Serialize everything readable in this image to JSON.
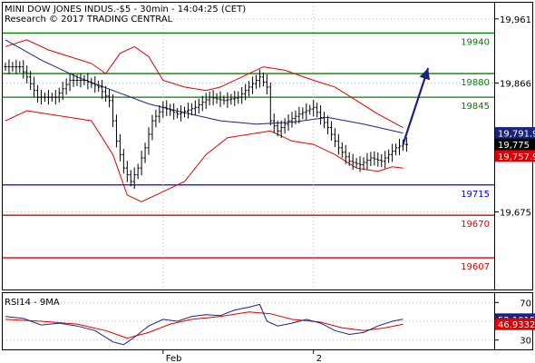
{
  "chart_data": {
    "type": "line",
    "instrument": "MINI DOW JONES INDUS.-$5 - 30min - 14:04:25 (CET)",
    "credit": "Research © 2017 TRADING CENTRAL",
    "price_axis": {
      "ylim": [
        19560,
        19985
      ],
      "ticks": [
        19961,
        19866,
        19675
      ]
    },
    "x_labels": [
      {
        "label": "Feb",
        "index": 44
      },
      {
        "label": "2",
        "index": 86
      }
    ],
    "candle_count": 113,
    "levels": [
      {
        "value": 19940,
        "label": "19940",
        "color": "#008000"
      },
      {
        "value": 19880,
        "label": "19880",
        "color": "#008000"
      },
      {
        "value": 19845,
        "label": "19845",
        "color": "#008000"
      },
      {
        "value": 19715,
        "label": "19715",
        "color": "#0000ff"
      },
      {
        "value": 19670,
        "label": "19670",
        "color": "#e00000"
      },
      {
        "value": 19607,
        "label": "19607",
        "color": "#e00000"
      }
    ],
    "price_series": [
      {
        "i": 0,
        "v": 19890
      },
      {
        "i": 4,
        "v": 19890
      },
      {
        "i": 6,
        "v": 19875
      },
      {
        "i": 9,
        "v": 19845
      },
      {
        "i": 14,
        "v": 19845
      },
      {
        "i": 18,
        "v": 19870
      },
      {
        "i": 22,
        "v": 19870
      },
      {
        "i": 26,
        "v": 19860
      },
      {
        "i": 29,
        "v": 19840
      },
      {
        "i": 31,
        "v": 19780
      },
      {
        "i": 33,
        "v": 19740
      },
      {
        "i": 35,
        "v": 19720
      },
      {
        "i": 37,
        "v": 19740
      },
      {
        "i": 39,
        "v": 19770
      },
      {
        "i": 41,
        "v": 19810
      },
      {
        "i": 44,
        "v": 19830
      },
      {
        "i": 48,
        "v": 19820
      },
      {
        "i": 53,
        "v": 19830
      },
      {
        "i": 57,
        "v": 19845
      },
      {
        "i": 61,
        "v": 19840
      },
      {
        "i": 65,
        "v": 19845
      },
      {
        "i": 68,
        "v": 19860
      },
      {
        "i": 71,
        "v": 19875
      },
      {
        "i": 73,
        "v": 19860
      },
      {
        "i": 74,
        "v": 19810
      },
      {
        "i": 76,
        "v": 19795
      },
      {
        "i": 79,
        "v": 19810
      },
      {
        "i": 82,
        "v": 19820
      },
      {
        "i": 86,
        "v": 19830
      },
      {
        "i": 90,
        "v": 19800
      },
      {
        "i": 93,
        "v": 19770
      },
      {
        "i": 96,
        "v": 19750
      },
      {
        "i": 99,
        "v": 19745
      },
      {
        "i": 102,
        "v": 19755
      },
      {
        "i": 105,
        "v": 19750
      },
      {
        "i": 107,
        "v": 19760
      },
      {
        "i": 109,
        "v": 19770
      },
      {
        "i": 111,
        "v": 19775
      }
    ],
    "moving_average": [
      {
        "i": 0,
        "v": 19930
      },
      {
        "i": 10,
        "v": 19900
      },
      {
        "i": 20,
        "v": 19875
      },
      {
        "i": 30,
        "v": 19855
      },
      {
        "i": 40,
        "v": 19835
      },
      {
        "i": 50,
        "v": 19822
      },
      {
        "i": 60,
        "v": 19810
      },
      {
        "i": 70,
        "v": 19805
      },
      {
        "i": 80,
        "v": 19808
      },
      {
        "i": 90,
        "v": 19815
      },
      {
        "i": 100,
        "v": 19805
      },
      {
        "i": 111,
        "v": 19791.9
      }
    ],
    "upper_band": [
      {
        "i": 0,
        "v": 19920
      },
      {
        "i": 6,
        "v": 19930
      },
      {
        "i": 12,
        "v": 19915
      },
      {
        "i": 18,
        "v": 19905
      },
      {
        "i": 24,
        "v": 19895
      },
      {
        "i": 28,
        "v": 19880
      },
      {
        "i": 32,
        "v": 19910
      },
      {
        "i": 36,
        "v": 19920
      },
      {
        "i": 40,
        "v": 19905
      },
      {
        "i": 44,
        "v": 19870
      },
      {
        "i": 50,
        "v": 19860
      },
      {
        "i": 56,
        "v": 19855
      },
      {
        "i": 60,
        "v": 19860
      },
      {
        "i": 66,
        "v": 19875
      },
      {
        "i": 72,
        "v": 19890
      },
      {
        "i": 78,
        "v": 19885
      },
      {
        "i": 86,
        "v": 19870
      },
      {
        "i": 92,
        "v": 19860
      },
      {
        "i": 98,
        "v": 19840
      },
      {
        "i": 104,
        "v": 19820
      },
      {
        "i": 111,
        "v": 19800
      }
    ],
    "lower_band": [
      {
        "i": 0,
        "v": 19810
      },
      {
        "i": 6,
        "v": 19825
      },
      {
        "i": 12,
        "v": 19820
      },
      {
        "i": 18,
        "v": 19815
      },
      {
        "i": 24,
        "v": 19810
      },
      {
        "i": 30,
        "v": 19760
      },
      {
        "i": 34,
        "v": 19700
      },
      {
        "i": 38,
        "v": 19690
      },
      {
        "i": 44,
        "v": 19705
      },
      {
        "i": 50,
        "v": 19720
      },
      {
        "i": 56,
        "v": 19760
      },
      {
        "i": 62,
        "v": 19785
      },
      {
        "i": 68,
        "v": 19790
      },
      {
        "i": 74,
        "v": 19795
      },
      {
        "i": 80,
        "v": 19780
      },
      {
        "i": 86,
        "v": 19775
      },
      {
        "i": 92,
        "v": 19760
      },
      {
        "i": 98,
        "v": 19740
      },
      {
        "i": 104,
        "v": 19735
      },
      {
        "i": 108,
        "v": 19742
      },
      {
        "i": 111,
        "v": 19740
      }
    ],
    "arrow": {
      "from_i": 111,
      "from_v": 19775,
      "to_i": 118,
      "to_v": 19888,
      "color": "#1a237e"
    },
    "price_boxes": [
      {
        "value": 19791.9,
        "label": "19,791.9",
        "color": "#1a237e"
      },
      {
        "value": 19775,
        "label": "19,775",
        "color": "#000000"
      },
      {
        "value": 19757.9,
        "label": "19,757.9",
        "color": "#e00000"
      }
    ],
    "rsi": {
      "title": "RSI14 - 9MA",
      "ylim": [
        20,
        80
      ],
      "ticks": [
        70,
        50,
        30
      ],
      "last_rsi": {
        "value": 52.1015,
        "label": "52.1015",
        "color": "#1a237e"
      },
      "last_ma": {
        "value": 46.9332,
        "label": "46.9332",
        "color": "#e00000"
      },
      "rsi_series": [
        {
          "i": 0,
          "v": 55
        },
        {
          "i": 5,
          "v": 53
        },
        {
          "i": 10,
          "v": 46
        },
        {
          "i": 15,
          "v": 48
        },
        {
          "i": 20,
          "v": 45
        },
        {
          "i": 25,
          "v": 40
        },
        {
          "i": 30,
          "v": 28
        },
        {
          "i": 33,
          "v": 25
        },
        {
          "i": 36,
          "v": 33
        },
        {
          "i": 40,
          "v": 45
        },
        {
          "i": 44,
          "v": 52
        },
        {
          "i": 48,
          "v": 50
        },
        {
          "i": 52,
          "v": 55
        },
        {
          "i": 56,
          "v": 57
        },
        {
          "i": 60,
          "v": 56
        },
        {
          "i": 64,
          "v": 62
        },
        {
          "i": 68,
          "v": 65
        },
        {
          "i": 71,
          "v": 68
        },
        {
          "i": 73,
          "v": 50
        },
        {
          "i": 76,
          "v": 45
        },
        {
          "i": 80,
          "v": 48
        },
        {
          "i": 84,
          "v": 52
        },
        {
          "i": 88,
          "v": 48
        },
        {
          "i": 92,
          "v": 40
        },
        {
          "i": 96,
          "v": 36
        },
        {
          "i": 100,
          "v": 38
        },
        {
          "i": 104,
          "v": 45
        },
        {
          "i": 108,
          "v": 50
        },
        {
          "i": 111,
          "v": 52.1015
        }
      ],
      "ma_series": [
        {
          "i": 0,
          "v": 52
        },
        {
          "i": 10,
          "v": 50
        },
        {
          "i": 20,
          "v": 47
        },
        {
          "i": 28,
          "v": 40
        },
        {
          "i": 34,
          "v": 32
        },
        {
          "i": 40,
          "v": 38
        },
        {
          "i": 46,
          "v": 47
        },
        {
          "i": 52,
          "v": 52
        },
        {
          "i": 60,
          "v": 55
        },
        {
          "i": 68,
          "v": 60
        },
        {
          "i": 74,
          "v": 58
        },
        {
          "i": 80,
          "v": 52
        },
        {
          "i": 88,
          "v": 49
        },
        {
          "i": 94,
          "v": 43
        },
        {
          "i": 100,
          "v": 40
        },
        {
          "i": 106,
          "v": 43
        },
        {
          "i": 111,
          "v": 46.9332
        }
      ]
    }
  }
}
